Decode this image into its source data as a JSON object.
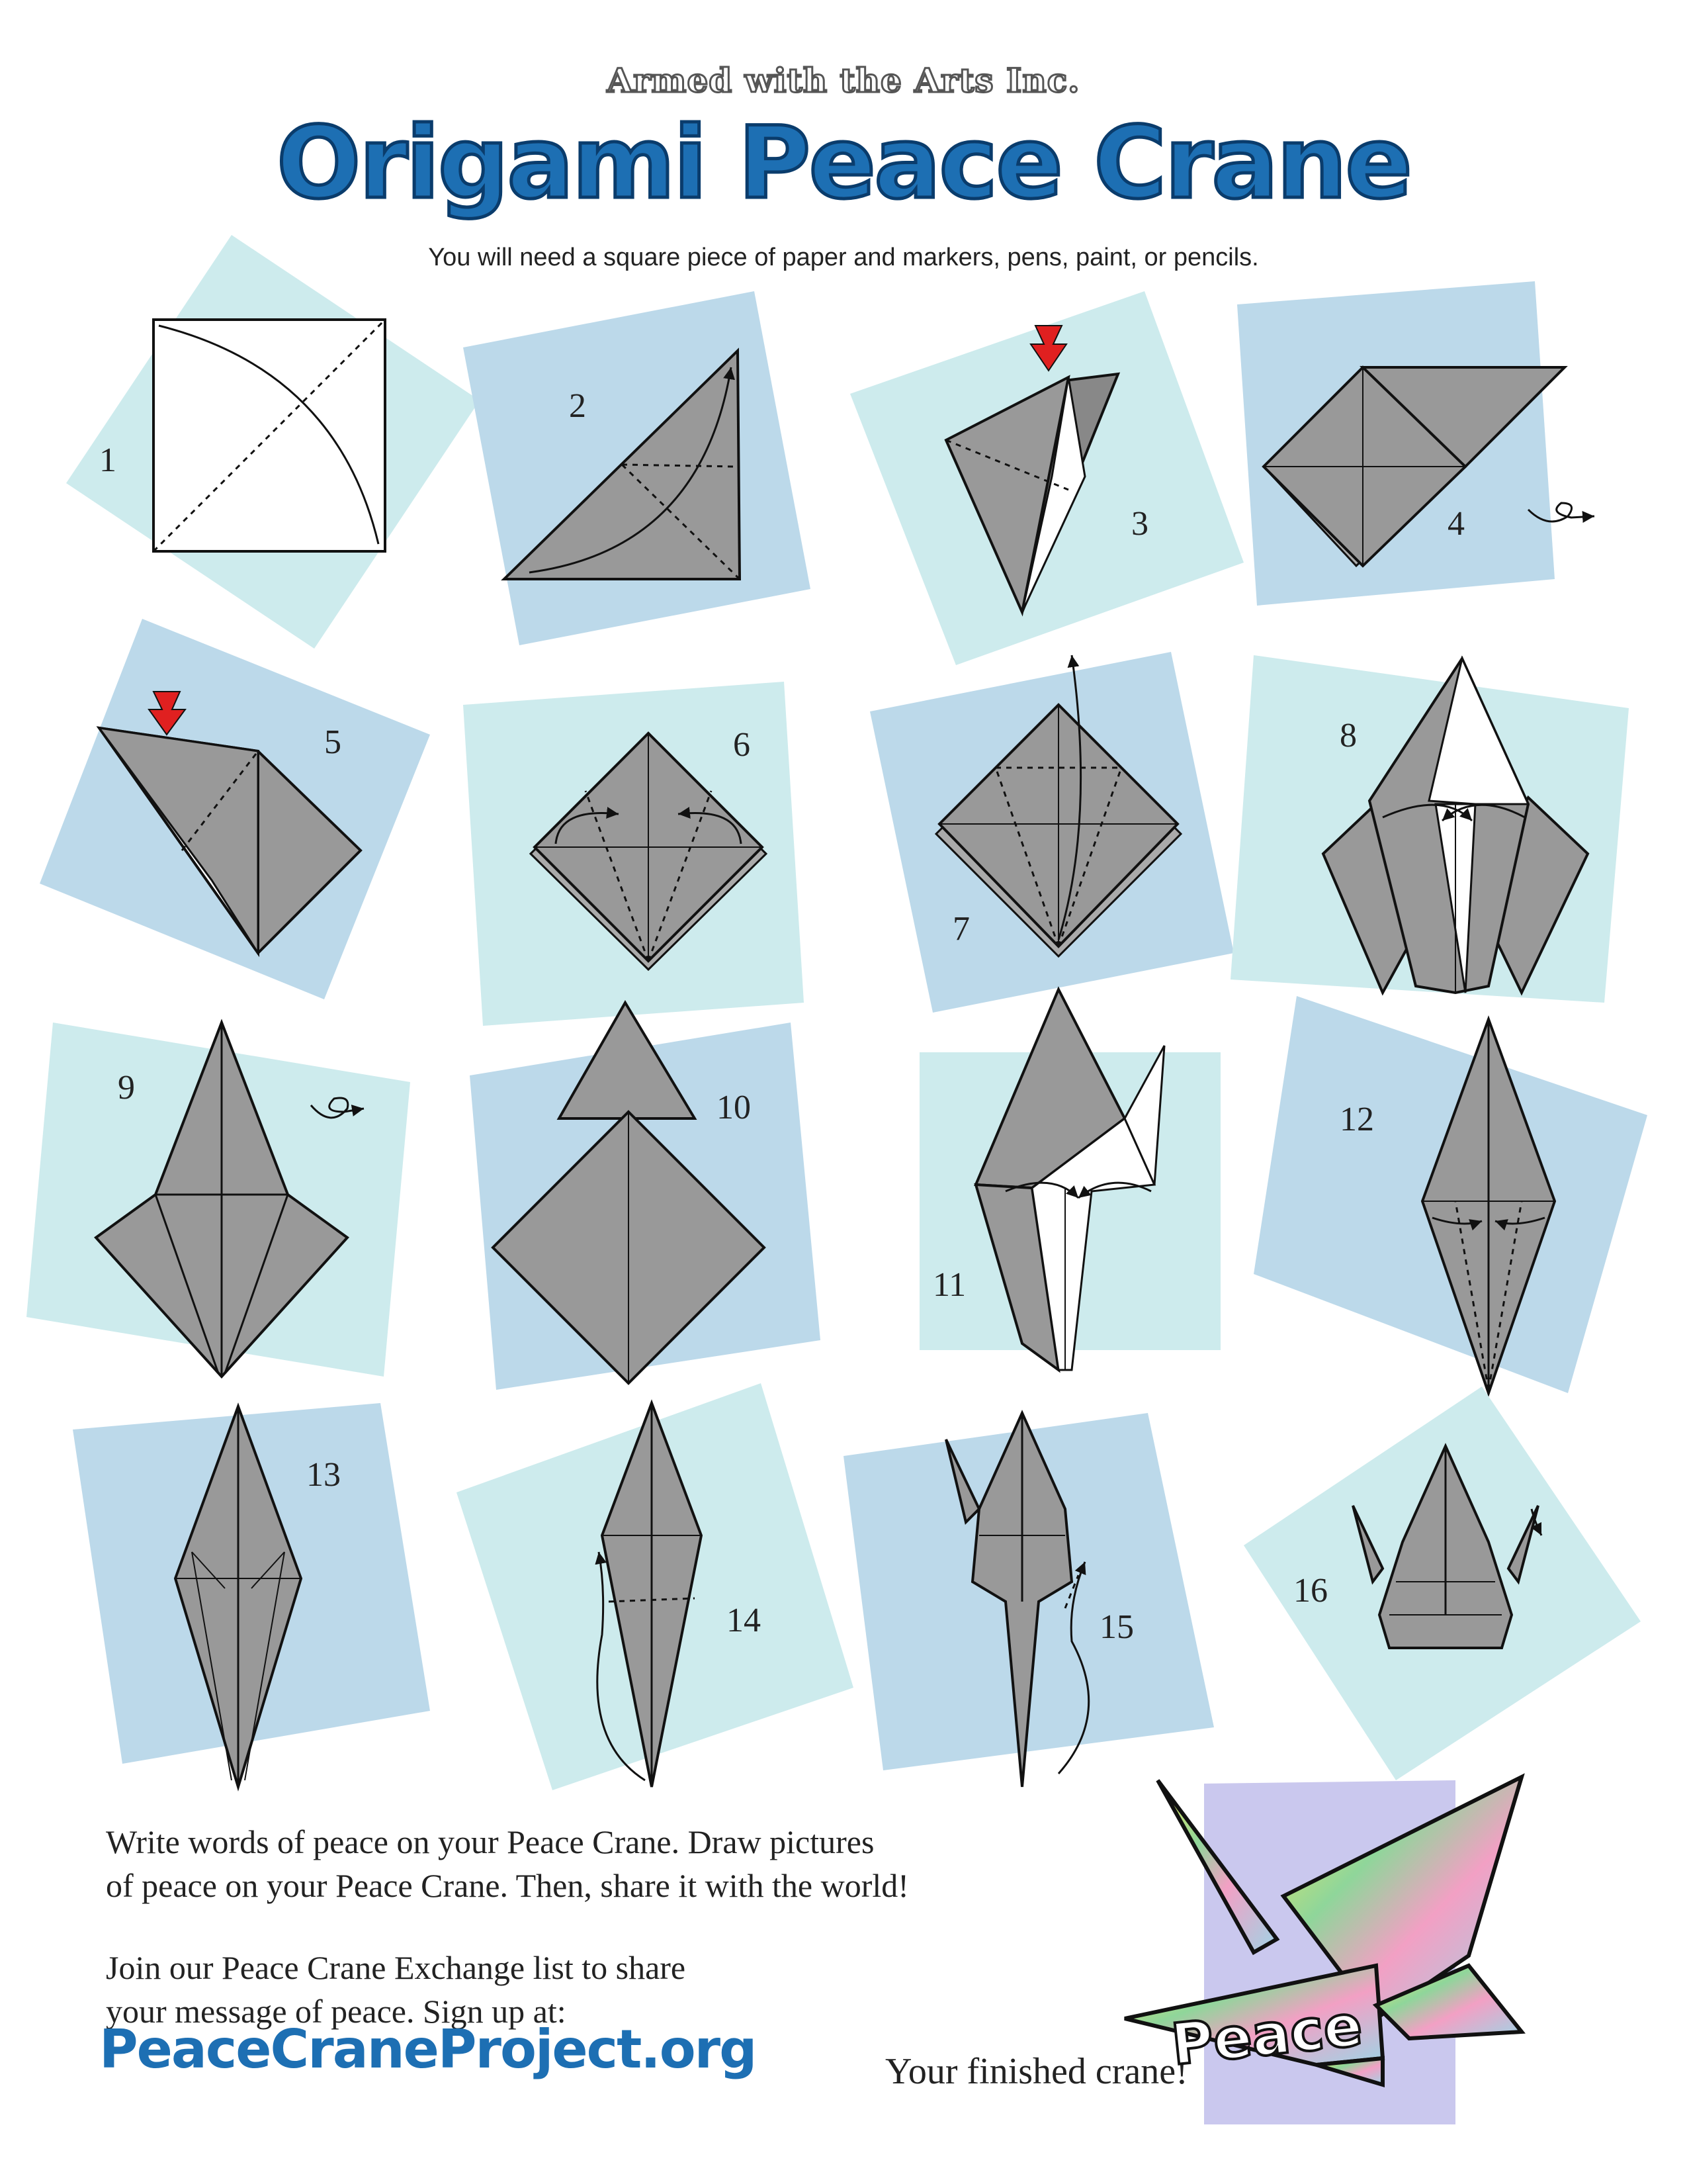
{
  "header": {
    "organization": "Armed with the Arts Inc.",
    "title": "Origami Peace Crane",
    "subtitle": "You will need a square piece of paper and markers, pens, paint, or pencils."
  },
  "steps": [
    {
      "number": "1"
    },
    {
      "number": "2"
    },
    {
      "number": "3"
    },
    {
      "number": "4"
    },
    {
      "number": "5"
    },
    {
      "number": "6"
    },
    {
      "number": "7"
    },
    {
      "number": "8"
    },
    {
      "number": "9"
    },
    {
      "number": "10"
    },
    {
      "number": "11"
    },
    {
      "number": "12"
    },
    {
      "number": "13"
    },
    {
      "number": "14"
    },
    {
      "number": "15"
    },
    {
      "number": "16"
    }
  ],
  "footer": {
    "message_line1": "Write words of peace on your Peace Crane. Draw pictures",
    "message_line2": "of peace on your Peace Crane. Then, share it with the world!",
    "join_line1": "Join our Peace Crane Exchange list to share",
    "join_line2": "your message of peace. Sign up at:",
    "url": "PeaceCraneProject.org",
    "finished_caption": "Your finished crane!",
    "crane_text": "Peace"
  },
  "colors": {
    "light_teal": "#cdebed",
    "light_blue": "#bcd9ea",
    "paper_gray": "#999999",
    "title_blue": "#1d6fb3",
    "arrow_red": "#e02020",
    "lavender": "#cac8ee"
  }
}
